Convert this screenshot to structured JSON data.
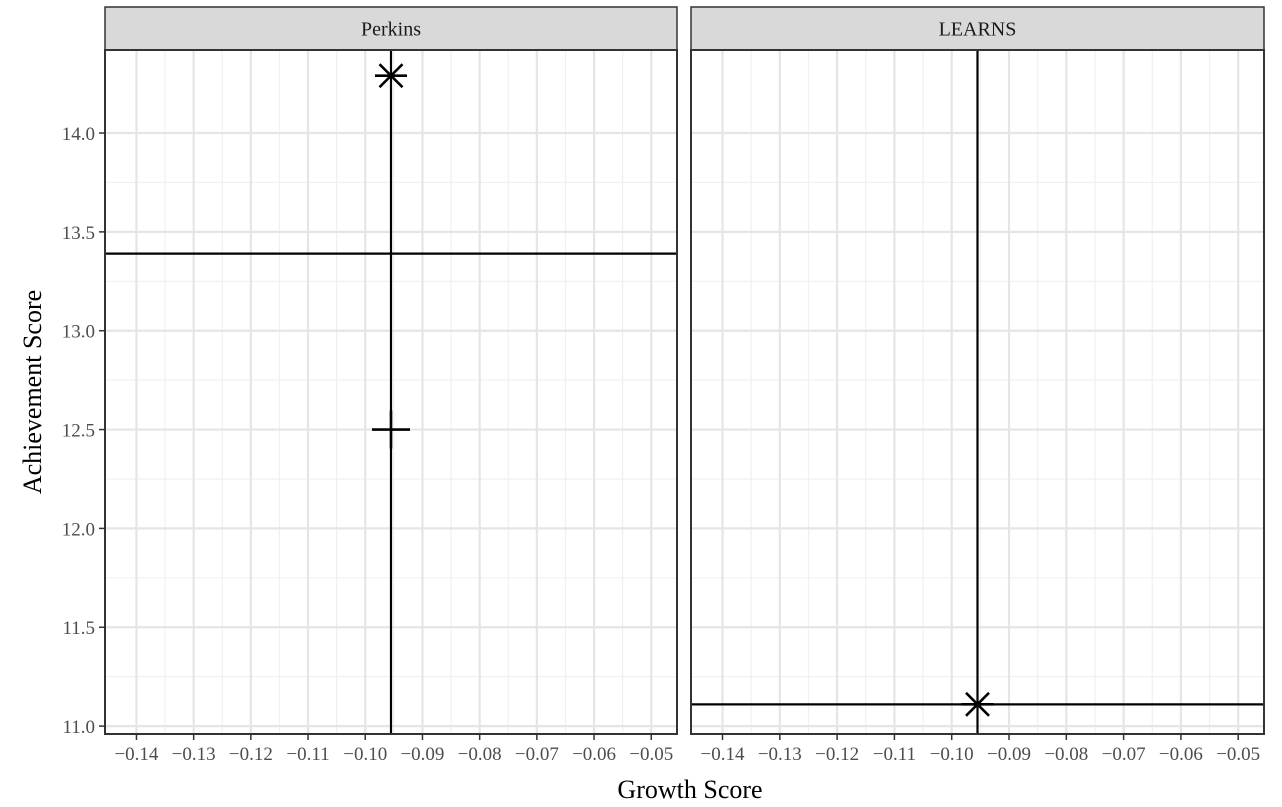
{
  "chart_data": {
    "type": "scatter",
    "xlabel": "Growth Score",
    "ylabel": "Achievement Score",
    "xlim": [
      -0.1455,
      -0.0455
    ],
    "ylim": [
      10.96,
      14.42
    ],
    "x_ticks": [
      -0.14,
      -0.13,
      -0.12,
      -0.11,
      -0.1,
      -0.09,
      -0.08,
      -0.07,
      -0.06,
      -0.05
    ],
    "x_tick_labels": [
      "−0.14",
      "−0.13",
      "−0.12",
      "−0.11",
      "−0.10",
      "−0.09",
      "−0.08",
      "−0.07",
      "−0.06",
      "−0.05"
    ],
    "y_ticks": [
      11.0,
      11.5,
      12.0,
      12.5,
      13.0,
      13.5,
      14.0
    ],
    "y_tick_labels": [
      "11.0",
      "11.5",
      "12.0",
      "12.5",
      "13.0",
      "13.5",
      "14.0"
    ],
    "grid": true,
    "panels": [
      {
        "strip_label": "Perkins",
        "vline_x": -0.0955,
        "hline_y": 13.39,
        "points": [
          {
            "x": -0.0955,
            "y": 14.29,
            "shape": "asterisk"
          },
          {
            "x": -0.0955,
            "y": 12.5,
            "shape": "plus"
          }
        ]
      },
      {
        "strip_label": "LEARNS",
        "vline_x": -0.0955,
        "hline_y": 11.11,
        "points": [
          {
            "x": -0.0955,
            "y": 11.11,
            "shape": "asterisk"
          }
        ]
      }
    ]
  }
}
